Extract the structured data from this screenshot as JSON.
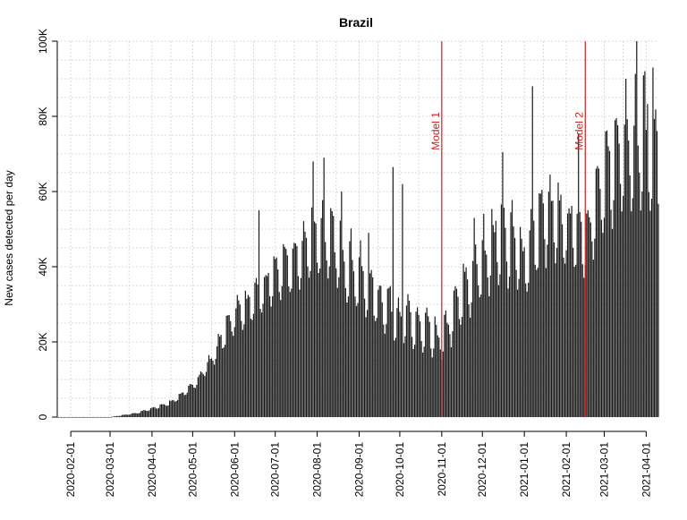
{
  "chart_data": {
    "type": "bar",
    "title": "Brazil",
    "xlabel": "",
    "ylabel": "New cases detected per day",
    "x_start": "2020-01-22",
    "x_end": "2021-04-10",
    "ylim": [
      0,
      100000
    ],
    "yticks": [
      {
        "value": 0,
        "label": "0"
      },
      {
        "value": 20000,
        "label": "20K"
      },
      {
        "value": 40000,
        "label": "40K"
      },
      {
        "value": 60000,
        "label": "60K"
      },
      {
        "value": 80000,
        "label": "80K"
      },
      {
        "value": 100000,
        "label": "100K"
      }
    ],
    "xticks": [
      "2020-02-01",
      "2020-03-01",
      "2020-04-01",
      "2020-05-01",
      "2020-06-01",
      "2020-07-01",
      "2020-08-01",
      "2020-09-01",
      "2020-10-01",
      "2020-11-01",
      "2020-12-01",
      "2021-01-01",
      "2021-02-01",
      "2021-03-01",
      "2021-04-01"
    ],
    "grid": true,
    "series_color": "#1a1a1a",
    "annotations": [
      {
        "label": "Model 1",
        "date": "2020-11-01",
        "color": "#cc2222"
      },
      {
        "label": "Model 2",
        "date": "2021-02-15",
        "color": "#cc2222"
      }
    ],
    "weekly_base_anchors": [
      [
        "2020-03-01",
        0
      ],
      [
        "2020-03-20",
        600
      ],
      [
        "2020-04-01",
        1500
      ],
      [
        "2020-04-15",
        2500
      ],
      [
        "2020-05-01",
        6000
      ],
      [
        "2020-05-15",
        11000
      ],
      [
        "2020-06-01",
        18000
      ],
      [
        "2020-06-15",
        21000
      ],
      [
        "2020-07-01",
        24000
      ],
      [
        "2020-07-15",
        27000
      ],
      [
        "2020-08-01",
        27000
      ],
      [
        "2020-08-15",
        25000
      ],
      [
        "2020-09-01",
        20000
      ],
      [
        "2020-09-15",
        17000
      ],
      [
        "2020-10-01",
        13000
      ],
      [
        "2020-10-15",
        11000
      ],
      [
        "2020-11-01",
        10000
      ],
      [
        "2020-11-15",
        16000
      ],
      [
        "2020-12-01",
        22000
      ],
      [
        "2020-12-15",
        26000
      ],
      [
        "2021-01-01",
        22000
      ],
      [
        "2021-01-15",
        30000
      ],
      [
        "2021-02-01",
        28000
      ],
      [
        "2021-02-15",
        27000
      ],
      [
        "2021-03-01",
        35000
      ],
      [
        "2021-03-15",
        42000
      ],
      [
        "2021-04-01",
        38000
      ],
      [
        "2021-04-10",
        35000
      ]
    ],
    "weekly_peak_anchors": [
      [
        "2020-03-01",
        0
      ],
      [
        "2020-03-20",
        1200
      ],
      [
        "2020-04-01",
        2500
      ],
      [
        "2020-04-15",
        4500
      ],
      [
        "2020-05-01",
        9000
      ],
      [
        "2020-05-15",
        17000
      ],
      [
        "2020-06-01",
        31000
      ],
      [
        "2020-06-15",
        34000
      ],
      [
        "2020-07-01",
        43000
      ],
      [
        "2020-07-15",
        46000
      ],
      [
        "2020-08-01",
        58000
      ],
      [
        "2020-08-15",
        52000
      ],
      [
        "2020-09-01",
        44000
      ],
      [
        "2020-09-15",
        37000
      ],
      [
        "2020-10-01",
        32000
      ],
      [
        "2020-10-15",
        29000
      ],
      [
        "2020-11-01",
        24000
      ],
      [
        "2020-11-15",
        38000
      ],
      [
        "2020-12-01",
        50000
      ],
      [
        "2020-12-15",
        57000
      ],
      [
        "2021-01-01",
        50000
      ],
      [
        "2021-01-15",
        62000
      ],
      [
        "2021-02-01",
        60000
      ],
      [
        "2021-02-15",
        57000
      ],
      [
        "2021-03-01",
        72000
      ],
      [
        "2021-03-15",
        85000
      ],
      [
        "2021-04-01",
        88000
      ],
      [
        "2021-04-10",
        82000
      ]
    ],
    "spikes": [
      [
        "2020-06-19",
        55000
      ],
      [
        "2020-07-29",
        68000
      ],
      [
        "2020-08-06",
        69000
      ],
      [
        "2020-08-19",
        60000
      ],
      [
        "2020-09-08",
        49000
      ],
      [
        "2020-09-26",
        66500
      ],
      [
        "2020-10-03",
        62000
      ],
      [
        "2020-11-25",
        53000
      ],
      [
        "2020-12-16",
        70500
      ],
      [
        "2021-01-07",
        88000
      ],
      [
        "2021-02-10",
        75500
      ],
      [
        "2021-03-09",
        79000
      ],
      [
        "2021-03-17",
        90000
      ],
      [
        "2021-03-25",
        100000
      ],
      [
        "2021-03-31",
        92000
      ],
      [
        "2021-04-06",
        93000
      ]
    ]
  }
}
